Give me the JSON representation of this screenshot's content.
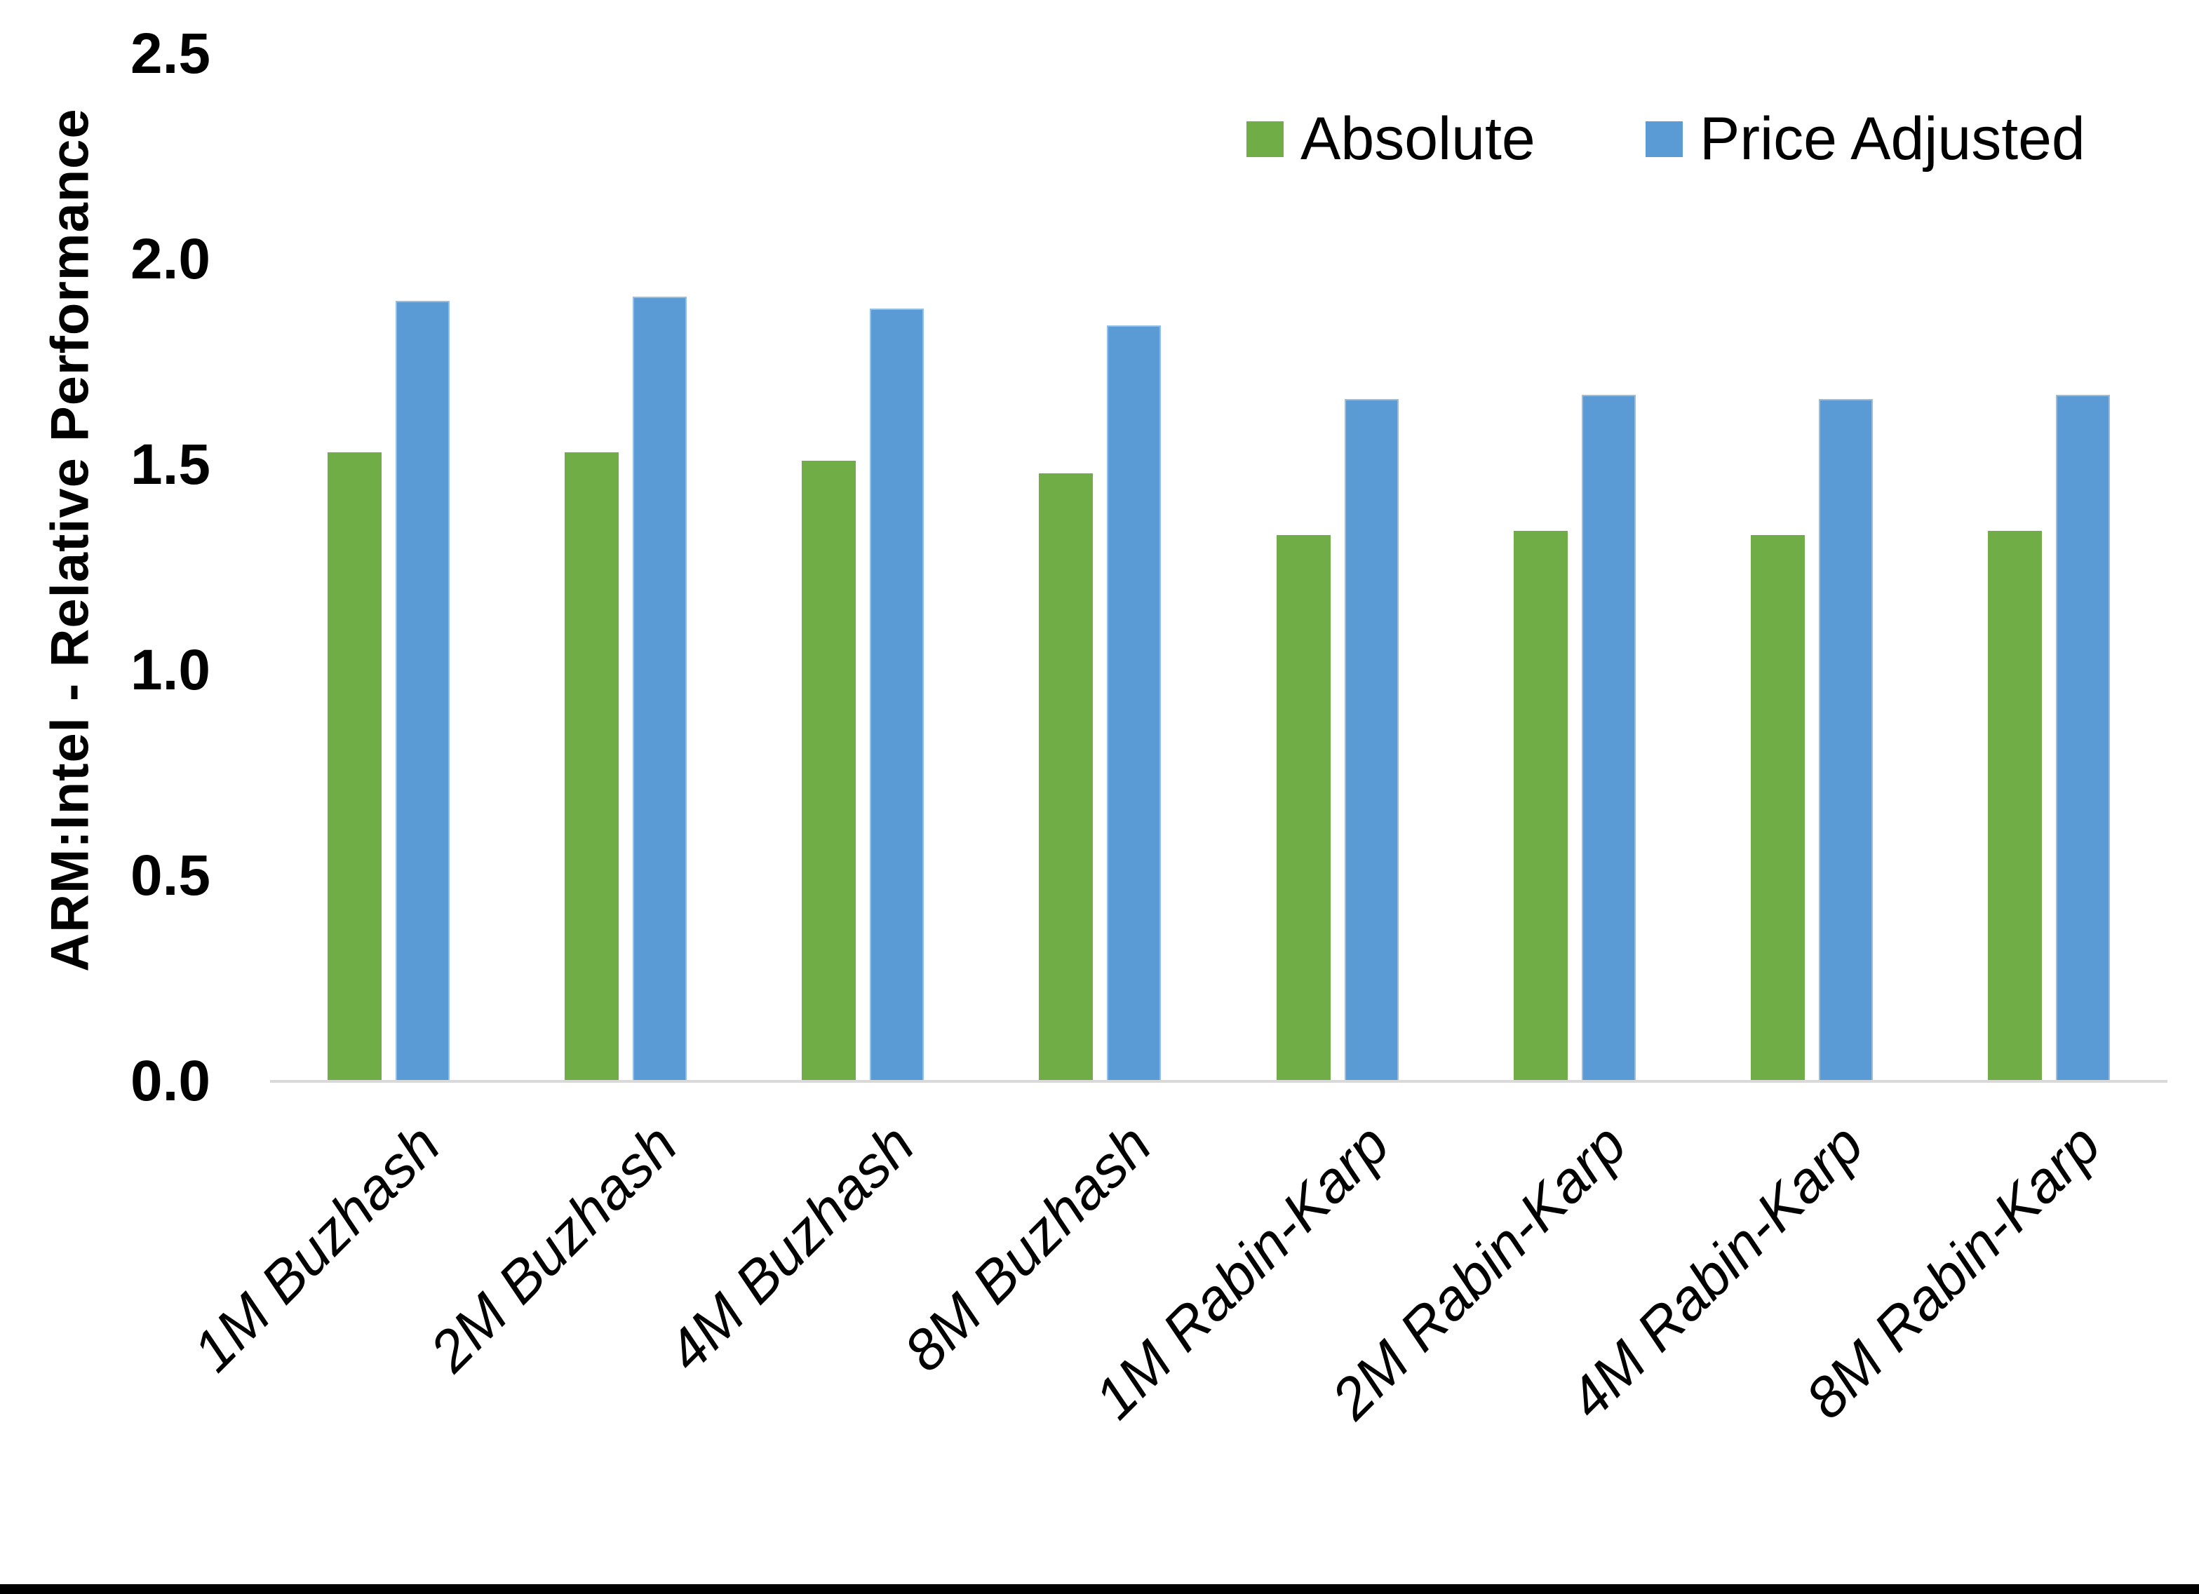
{
  "figure": {
    "background": "#FFFFFF",
    "bottom_border_color": "#000000",
    "axis_line_color": "#D9D9D9"
  },
  "legend": {
    "items": [
      {
        "label": "Absolute",
        "color": "#70AD47"
      },
      {
        "label": "Price Adjusted",
        "color": "#5B9BD5"
      }
    ]
  },
  "chart_data": {
    "type": "bar",
    "title": "",
    "xlabel": "",
    "ylabel": "ARM:Intel - Relative Performance",
    "ylim": [
      0,
      2.5
    ],
    "yticks": [
      "0.0",
      "0.5",
      "1.0",
      "1.5",
      "2.0",
      "2.5"
    ],
    "grid": false,
    "legend_position": "top-right",
    "categories": [
      "1M Buzhash",
      "2M Buzhash",
      "4M Buzhash",
      "8M Buzhash",
      "1M Rabin-Karp",
      "2M Rabin-Karp",
      "4M Rabin-Karp",
      "8M Rabin-Karp"
    ],
    "series": [
      {
        "name": "Absolute",
        "color": "#70AD47",
        "values": [
          1.53,
          1.53,
          1.51,
          1.48,
          1.33,
          1.34,
          1.33,
          1.34
        ]
      },
      {
        "name": "Price Adjusted",
        "color": "#5B9BD5",
        "values": [
          1.9,
          1.91,
          1.88,
          1.84,
          1.66,
          1.67,
          1.66,
          1.67
        ]
      }
    ]
  }
}
